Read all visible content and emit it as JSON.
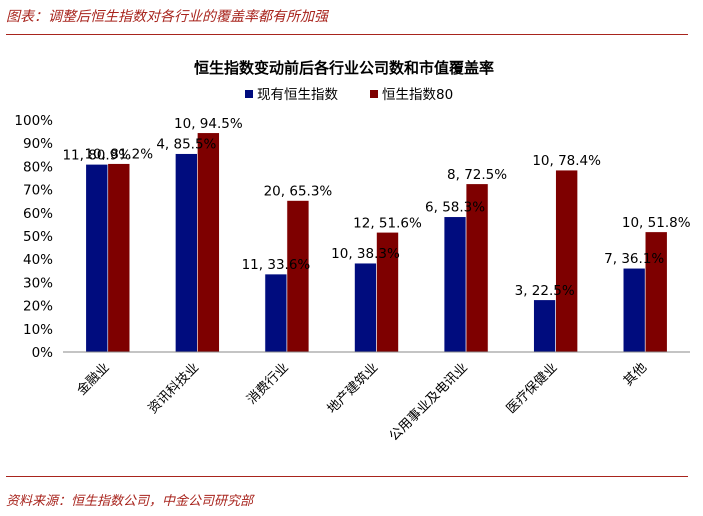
{
  "caption": "图表：调整后恒生指数对各行业的覆盖率都有所加强",
  "source": "资料来源：恒生指数公司，中金公司研究部",
  "chart_data": {
    "type": "bar",
    "title": "恒生指数变动前后各行业公司数和市值覆盖率",
    "categories": [
      "金融业",
      "资讯科技业",
      "消费行业",
      "地产建筑业",
      "公用事业及电讯业",
      "医疗保健业",
      "其他"
    ],
    "yticks": [
      "0%",
      "10%",
      "20%",
      "30%",
      "40%",
      "50%",
      "60%",
      "70%",
      "80%",
      "90%",
      "100%"
    ],
    "ylim": [
      0,
      100
    ],
    "legend_position": "top-right",
    "series": [
      {
        "name": "现有恒生指数",
        "color": "#000c7e",
        "values": [
          80.9,
          85.5,
          33.6,
          38.3,
          58.3,
          22.5,
          36.1
        ],
        "labels": [
          "11, 80.9%",
          "4, 85.5%",
          "11, 33.6%",
          "10, 38.3%",
          "6, 58.3%",
          "3, 22.5%",
          "7, 36.1%"
        ]
      },
      {
        "name": "恒生指数80",
        "color": "#7e0000",
        "values": [
          81.2,
          94.5,
          65.3,
          51.6,
          72.5,
          78.4,
          51.8
        ],
        "labels": [
          "10, 81.2%",
          "10, 94.5%",
          "20, 65.3%",
          "12, 51.6%",
          "8, 72.5%",
          "10, 78.4%",
          "10, 51.8%"
        ]
      }
    ]
  }
}
